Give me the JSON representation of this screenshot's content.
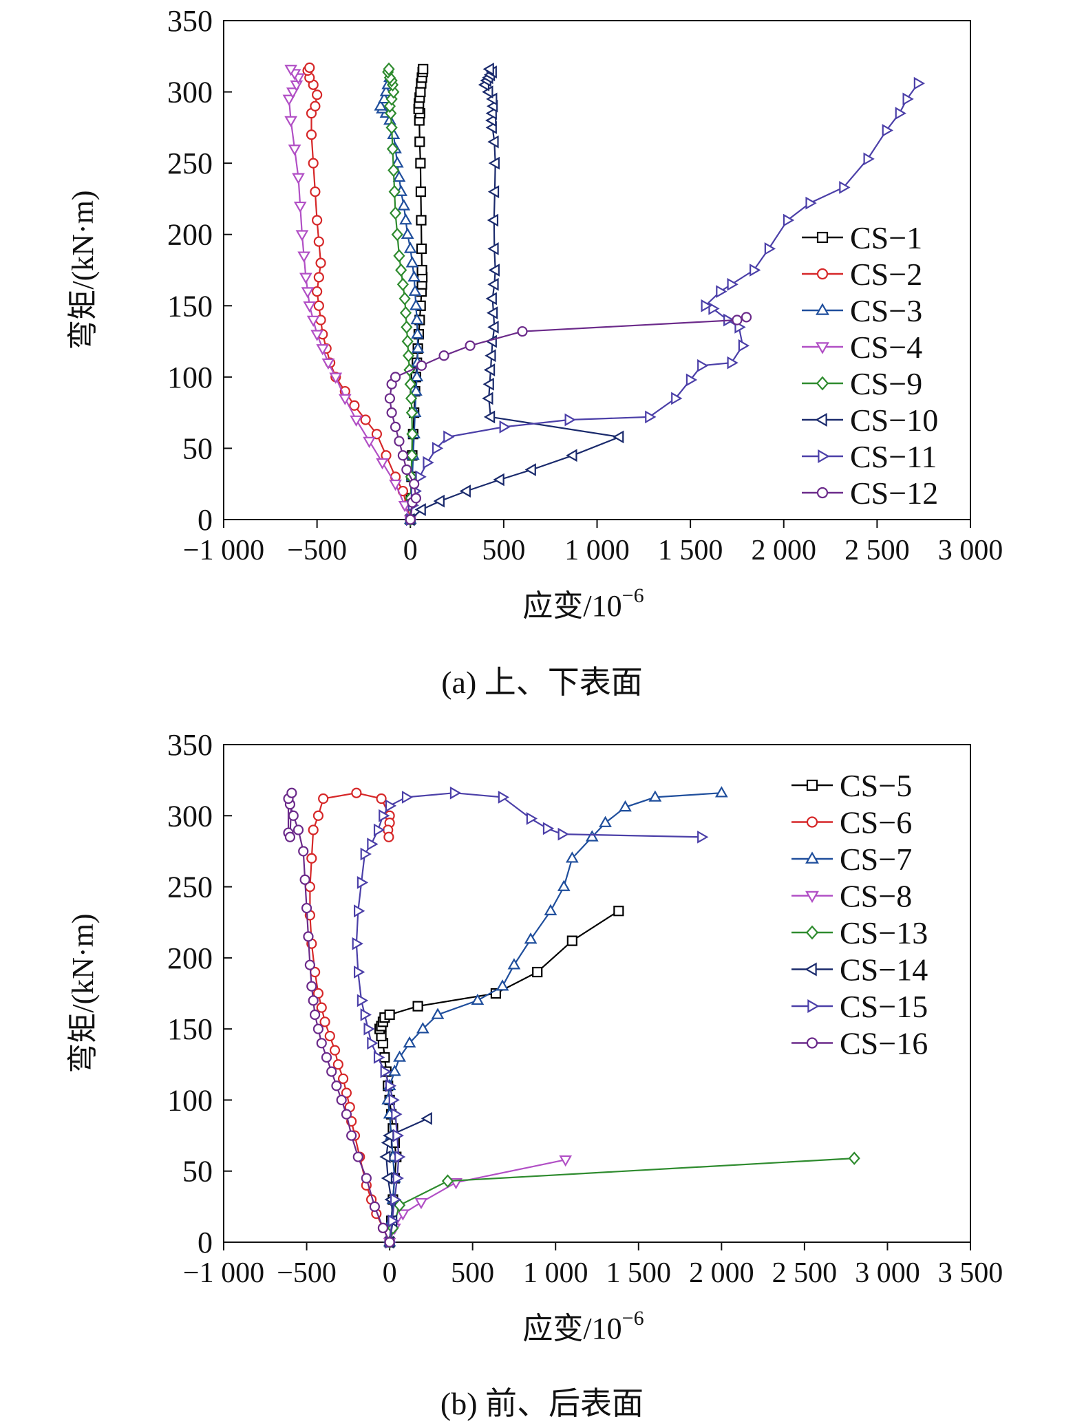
{
  "chart_data": [
    {
      "type": "line",
      "caption": "(a) 上、下表面",
      "xlabel": "应变/10",
      "xlabel_sup": "−6",
      "ylabel": "弯矩/(kN·m)",
      "xlim": [
        -1000,
        3000
      ],
      "ylim": [
        0,
        350
      ],
      "xticks": [
        -1000,
        -500,
        0,
        500,
        1000,
        1500,
        2000,
        2500,
        3000
      ],
      "xtick_labels": [
        "−1 000",
        "−500",
        "0",
        "500",
        "1 000",
        "1 500",
        "2 000",
        "2 500",
        "3 000"
      ],
      "yticks": [
        0,
        50,
        100,
        150,
        200,
        250,
        300,
        350
      ],
      "ytick_labels": [
        "0",
        "50",
        "100",
        "150",
        "200",
        "250",
        "300",
        "350"
      ],
      "grid": false,
      "legend_position": "right",
      "series": [
        {
          "name": "CS−1",
          "color": "#000000",
          "marker": "square",
          "x": [
            0,
            3,
            6,
            10,
            15,
            20,
            25,
            30,
            35,
            40,
            45,
            50,
            55,
            60,
            62,
            64,
            62,
            60,
            58,
            56,
            54,
            50,
            48,
            52,
            44,
            46,
            50,
            54,
            58,
            62,
            66,
            68
          ],
          "y": [
            0,
            15,
            30,
            45,
            60,
            75,
            90,
            100,
            110,
            120,
            130,
            140,
            150,
            160,
            165,
            170,
            175,
            190,
            210,
            230,
            250,
            265,
            280,
            285,
            288,
            292,
            296,
            300,
            306,
            310,
            314,
            316
          ]
        },
        {
          "name": "CS−2",
          "color": "#d62728",
          "marker": "circle",
          "x": [
            0,
            -20,
            -40,
            -80,
            -130,
            -180,
            -240,
            -300,
            -350,
            -400,
            -430,
            -450,
            -470,
            -480,
            -490,
            -500,
            -490,
            -480,
            -490,
            -500,
            -510,
            -520,
            -530,
            -530,
            -510,
            -500,
            -520,
            -540,
            -550,
            -540
          ],
          "y": [
            0,
            10,
            20,
            30,
            45,
            60,
            70,
            80,
            90,
            100,
            110,
            120,
            130,
            140,
            150,
            160,
            170,
            180,
            195,
            210,
            230,
            250,
            270,
            285,
            290,
            298,
            305,
            310,
            315,
            317
          ]
        },
        {
          "name": "CS−3",
          "color": "#1f4e9c",
          "marker": "triangle-up",
          "x": [
            0,
            5,
            10,
            15,
            20,
            25,
            30,
            35,
            38,
            40,
            38,
            35,
            30,
            25,
            20,
            10,
            0,
            -15,
            -25,
            -35,
            -50,
            -60,
            -70,
            -80,
            -90,
            -110,
            -130,
            -150,
            -160,
            -140,
            -130,
            -120,
            -110
          ],
          "y": [
            0,
            15,
            30,
            45,
            60,
            75,
            90,
            100,
            110,
            120,
            130,
            140,
            150,
            160,
            170,
            180,
            190,
            200,
            210,
            220,
            230,
            240,
            250,
            260,
            270,
            280,
            285,
            288,
            290,
            295,
            300,
            305,
            310
          ]
        },
        {
          "name": "CS−4",
          "color": "#b14fc5",
          "marker": "triangle-down",
          "x": [
            0,
            -30,
            -80,
            -150,
            -220,
            -290,
            -350,
            -400,
            -440,
            -470,
            -500,
            -520,
            -540,
            -550,
            -560,
            -570,
            -580,
            -590,
            -600,
            -620,
            -640,
            -650,
            -630,
            -610,
            -600,
            -620,
            -640
          ],
          "y": [
            0,
            10,
            25,
            40,
            55,
            70,
            85,
            100,
            110,
            120,
            130,
            140,
            150,
            160,
            170,
            185,
            200,
            220,
            240,
            260,
            280,
            295,
            300,
            305,
            310,
            313,
            316
          ]
        },
        {
          "name": "CS−9",
          "color": "#2e8b2e",
          "marker": "diamond",
          "x": [
            0,
            2,
            4,
            8,
            10,
            8,
            5,
            0,
            -5,
            -10,
            -15,
            -20,
            -25,
            -30,
            -40,
            -50,
            -60,
            -70,
            -80,
            -85,
            -90,
            -95,
            -100,
            -105,
            -110,
            -100,
            -90,
            -95,
            -100,
            -110,
            -120,
            -115
          ],
          "y": [
            0,
            15,
            30,
            45,
            60,
            75,
            85,
            95,
            105,
            115,
            125,
            135,
            145,
            155,
            165,
            175,
            185,
            200,
            215,
            230,
            245,
            260,
            275,
            285,
            290,
            295,
            300,
            305,
            308,
            310,
            314,
            316
          ]
        },
        {
          "name": "CS−10",
          "color": "#1a2a6c",
          "marker": "triangle-left",
          "x": [
            0,
            60,
            160,
            300,
            480,
            650,
            870,
            1120,
            430,
            420,
            425,
            430,
            435,
            440,
            450,
            445,
            440,
            450,
            455,
            450,
            448,
            452,
            455,
            450,
            440,
            438,
            440,
            445,
            442,
            420,
            400,
            410,
            420,
            430,
            440,
            425
          ],
          "y": [
            0,
            7,
            13,
            20,
            28,
            35,
            45,
            58,
            72,
            85,
            95,
            105,
            115,
            125,
            135,
            145,
            155,
            165,
            175,
            190,
            210,
            230,
            250,
            265,
            275,
            280,
            285,
            290,
            295,
            300,
            305,
            308,
            310,
            312,
            314,
            316
          ]
        },
        {
          "name": "CS−11",
          "color": "#4b3fa8",
          "marker": "triangle-right",
          "x": [
            0,
            10,
            25,
            50,
            90,
            140,
            200,
            500,
            850,
            1280,
            1420,
            1500,
            1560,
            1720,
            1780,
            1760,
            1700,
            1620,
            1580,
            1660,
            1720,
            1840,
            1920,
            2020,
            2140,
            2320,
            2450,
            2550,
            2620,
            2660,
            2720
          ],
          "y": [
            0,
            10,
            20,
            30,
            40,
            50,
            58,
            65,
            70,
            72,
            85,
            98,
            108,
            110,
            122,
            135,
            140,
            148,
            150,
            160,
            165,
            175,
            190,
            210,
            222,
            233,
            253,
            273,
            285,
            295,
            306
          ]
        },
        {
          "name": "CS−12",
          "color": "#6b2a8a",
          "marker": "circle",
          "x": [
            0,
            10,
            30,
            20,
            -20,
            -40,
            -60,
            -80,
            -100,
            -110,
            -100,
            -80,
            60,
            180,
            320,
            600,
            1750,
            1800
          ],
          "y": [
            0,
            12,
            15,
            25,
            35,
            45,
            55,
            65,
            75,
            85,
            95,
            100,
            108,
            115,
            122,
            132,
            140,
            142
          ]
        }
      ]
    },
    {
      "type": "line",
      "caption": "(b) 前、后表面",
      "xlabel": "应变/10",
      "xlabel_sup": "−6",
      "ylabel": "弯矩/(kN·m)",
      "xlim": [
        -1000,
        3500
      ],
      "ylim": [
        0,
        350
      ],
      "xticks": [
        -1000,
        -500,
        0,
        500,
        1000,
        1500,
        2000,
        2500,
        3000,
        3500
      ],
      "xtick_labels": [
        "−1 000",
        "−500",
        "0",
        "500",
        "1 000",
        "1 500",
        "2 000",
        "2 500",
        "3 000",
        "3 500"
      ],
      "yticks": [
        0,
        50,
        100,
        150,
        200,
        250,
        300,
        350
      ],
      "ytick_labels": [
        "0",
        "50",
        "100",
        "150",
        "200",
        "250",
        "300",
        "350"
      ],
      "grid": false,
      "legend_position": "right",
      "series": [
        {
          "name": "CS−5",
          "color": "#000000",
          "marker": "square",
          "x": [
            0,
            10,
            20,
            30,
            40,
            30,
            20,
            10,
            0,
            -10,
            -20,
            -30,
            -40,
            -50,
            -60,
            -50,
            -40,
            -30,
            0,
            170,
            640,
            890,
            1100,
            1380
          ],
          "y": [
            0,
            15,
            30,
            45,
            60,
            70,
            80,
            90,
            100,
            110,
            120,
            130,
            140,
            145,
            150,
            152,
            155,
            158,
            160,
            166,
            175,
            190,
            212,
            233
          ]
        },
        {
          "name": "CS−6",
          "color": "#d62728",
          "marker": "circle",
          "x": [
            0,
            -40,
            -80,
            -110,
            -140,
            -180,
            -210,
            -230,
            -240,
            -260,
            -280,
            -310,
            -330,
            -360,
            -390,
            -410,
            -430,
            -450,
            -470,
            -480,
            -480,
            -470,
            -460,
            -430,
            -400,
            -200,
            -50,
            0,
            0,
            -10,
            -5
          ],
          "y": [
            0,
            10,
            20,
            30,
            40,
            60,
            75,
            85,
            95,
            105,
            115,
            125,
            135,
            145,
            155,
            165,
            175,
            190,
            210,
            230,
            250,
            270,
            290,
            300,
            312,
            316,
            312,
            300,
            295,
            290,
            285
          ]
        },
        {
          "name": "CS−7",
          "color": "#1f4e9c",
          "marker": "triangle-up",
          "x": [
            0,
            10,
            20,
            30,
            20,
            10,
            0,
            -10,
            0,
            30,
            60,
            120,
            200,
            290,
            530,
            680,
            750,
            850,
            970,
            1050,
            1100,
            1220,
            1300,
            1420,
            1600,
            2000
          ],
          "y": [
            0,
            15,
            30,
            45,
            60,
            75,
            90,
            100,
            110,
            120,
            130,
            140,
            150,
            160,
            170,
            180,
            195,
            213,
            233,
            250,
            270,
            285,
            295,
            306,
            313,
            316
          ]
        },
        {
          "name": "CS−8",
          "color": "#b14fc5",
          "marker": "triangle-down",
          "x": [
            0,
            30,
            80,
            190,
            400,
            1060
          ],
          "y": [
            0,
            10,
            20,
            28,
            42,
            58
          ]
        },
        {
          "name": "CS−13",
          "color": "#2e8b2e",
          "marker": "diamond",
          "x": [
            0,
            20,
            60,
            350,
            2800
          ],
          "y": [
            0,
            10,
            26,
            43,
            59
          ]
        },
        {
          "name": "CS−14",
          "color": "#1a2a6c",
          "marker": "triangle-left",
          "x": [
            0,
            20,
            10,
            -10,
            -20,
            -10,
            0,
            230
          ],
          "y": [
            0,
            15,
            30,
            45,
            60,
            70,
            75,
            87
          ]
        },
        {
          "name": "CS−15",
          "color": "#4b3fa8",
          "marker": "triangle-right",
          "x": [
            0,
            15,
            30,
            45,
            55,
            45,
            35,
            20,
            0,
            -30,
            -70,
            -110,
            -130,
            -150,
            -170,
            -190,
            -200,
            -190,
            -170,
            -150,
            -110,
            -70,
            -40,
            0,
            100,
            390,
            680,
            850,
            950,
            1040,
            1880
          ],
          "y": [
            0,
            15,
            30,
            45,
            60,
            75,
            90,
            100,
            110,
            120,
            130,
            140,
            150,
            160,
            170,
            190,
            210,
            233,
            253,
            273,
            280,
            290,
            300,
            307,
            313,
            316,
            313,
            298,
            291,
            287,
            285
          ]
        },
        {
          "name": "CS−16",
          "color": "#6b2a8a",
          "marker": "circle",
          "x": [
            0,
            -40,
            -90,
            -140,
            -190,
            -230,
            -260,
            -290,
            -320,
            -350,
            -380,
            -410,
            -430,
            -450,
            -460,
            -470,
            -480,
            -490,
            -500,
            -510,
            -520,
            -550,
            -580,
            -600,
            -610,
            -610,
            -600,
            -590
          ],
          "y": [
            0,
            10,
            25,
            45,
            60,
            75,
            90,
            100,
            110,
            120,
            130,
            140,
            150,
            160,
            170,
            180,
            195,
            215,
            235,
            255,
            275,
            290,
            300,
            308,
            312,
            288,
            285,
            316
          ]
        }
      ]
    }
  ]
}
